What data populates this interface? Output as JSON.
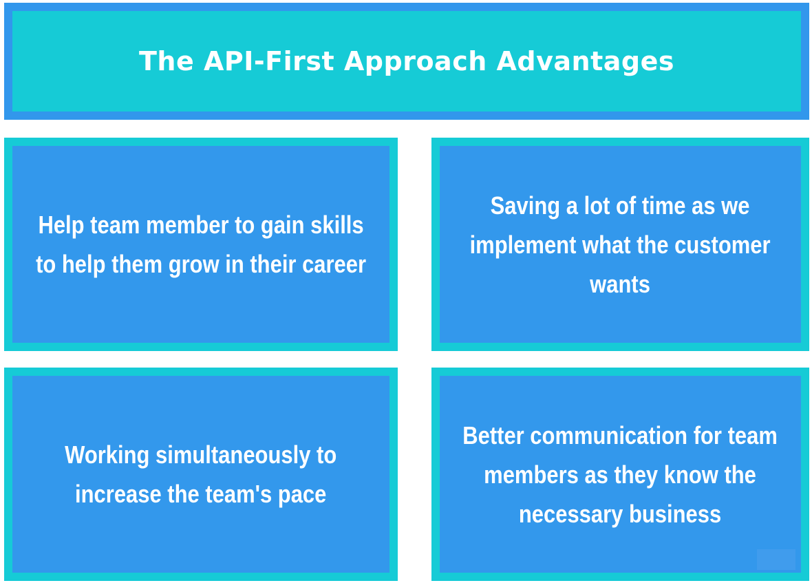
{
  "title": "The API-First Approach Advantages",
  "cards": [
    {
      "lines": [
        "Help team member to gain skills",
        "to help them grow in their career"
      ]
    },
    {
      "lines": [
        "Saving a lot of time as we",
        "implement what the customer",
        "wants"
      ]
    },
    {
      "lines": [
        "Working simultaneously to",
        "increase the team's pace"
      ]
    },
    {
      "lines": [
        "Better communication for team",
        "members as they know the",
        "necessary business"
      ]
    }
  ],
  "colors": {
    "cyan": "#16cbd6",
    "blue": "#3398ec",
    "text": "#ffffff"
  }
}
